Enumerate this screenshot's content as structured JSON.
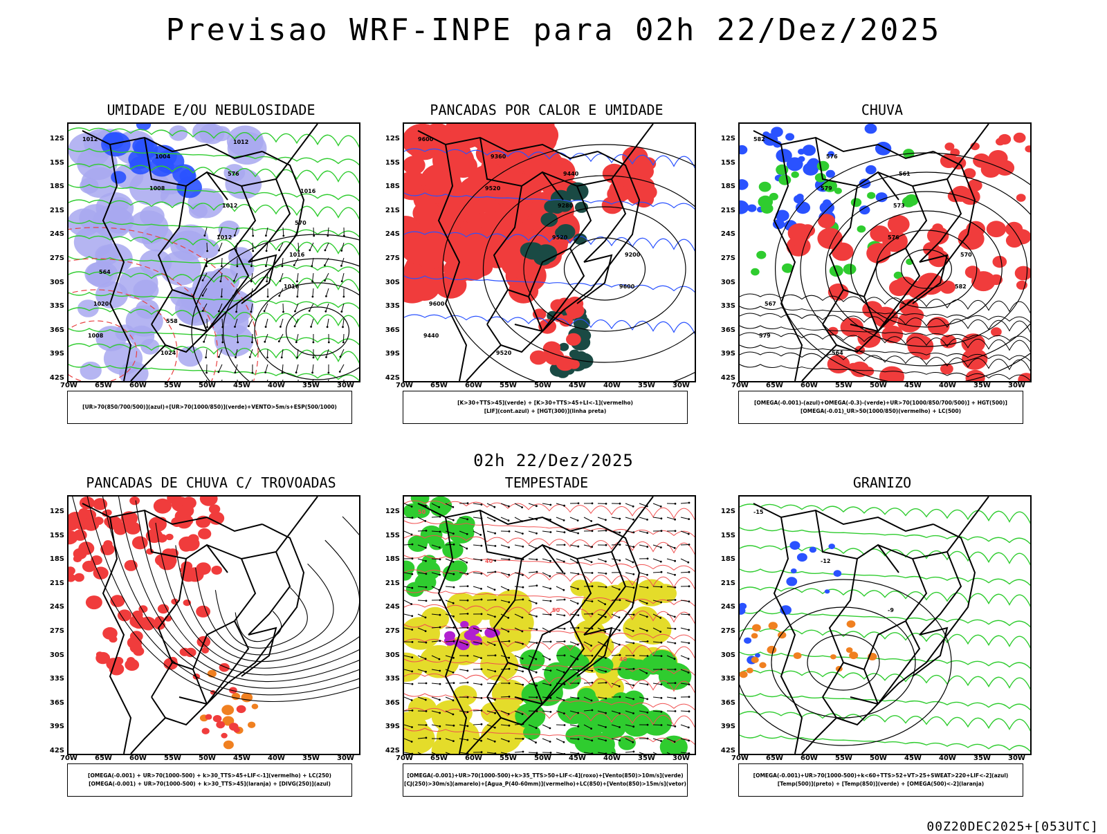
{
  "title": "Previsao WRF-INPE  para 02h 22/Dez/2025",
  "mid_time": "02h 22/Dez/2025",
  "footer": "00Z20DEC2025+[053UTC]",
  "axes": {
    "lat": [
      "12S",
      "15S",
      "18S",
      "21S",
      "24S",
      "27S",
      "30S",
      "33S",
      "36S",
      "39S",
      "42S"
    ],
    "lon": [
      "70W",
      "65W",
      "60W",
      "55W",
      "50W",
      "45W",
      "40W",
      "35W",
      "30W"
    ]
  },
  "colors": {
    "red": "#f03c3c",
    "green": "#2fcc2f",
    "blue": "#2a52ff",
    "lavender": "#a8a8f0",
    "yellow": "#e4dc2a",
    "darkgreen": "#1a4a44",
    "orange": "#f08020",
    "purple": "#b020d0"
  },
  "panels": [
    {
      "title": "UMIDADE E/OU NEBULOSIDADE",
      "legend": [
        "[UR>70(850/700/500)](azul)+[UR>70(1000/850)](verde)+VENTO>5m/s+ESP(500/1000)"
      ],
      "labels": [
        "1012",
        "1008",
        "1012",
        "1016",
        "1008",
        "1004",
        "1012",
        "1016",
        "1020",
        "1024",
        "576",
        "570",
        "564",
        "558",
        "1012",
        "1016"
      ]
    },
    {
      "title": "PANCADAS POR CALOR E UMIDADE",
      "legend": [
        "[K>30+TTS>45](verde)  +  [K>30+TTS>45+LI<-1](vermelho)",
        "[LIF](cont.azul)  +  [HGT(300)](linha preta)"
      ],
      "labels": [
        "9600",
        "9520",
        "9520",
        "9600",
        "9440",
        "9360",
        "9280",
        "9200",
        "9600",
        "9520",
        "9440"
      ]
    },
    {
      "title": "CHUVA",
      "legend": [
        "[OMEGA(-0.001)-(azul)+OMEGA(-0.3)-(verde)+UR>70(1000/850/700/500)]  +  HGT(500)]",
        "[OMEGA(-0.01)_UR>50(1000/850)(vermelho) + LC(500)"
      ],
      "labels": [
        "582",
        "579",
        "576",
        "582",
        "579",
        "576",
        "573",
        "570",
        "567",
        "564",
        "561"
      ]
    },
    {
      "title": "PANCADAS DE CHUVA C/ TROVOADAS",
      "legend": [
        "[OMEGA(-0.001)  +  UR>70(1000-500)  +  k>30_TTS>45+LIF<-1](vermelho)  +  LC(250)",
        "[OMEGA(-0.001)  +  UR>70(1000-500)  +  k>30_TTS>45](laranja)  +  [DIVG(250)](azul)"
      ],
      "labels": []
    },
    {
      "title": "TEMPESTADE",
      "legend": [
        "[OMEGA(-0.001)+UR>70(1000-500)+k>35_TTS>50+LIF<-4](roxo)+[Vento(850)>10m/s](verde)",
        "[CJ(250)>30m/s](amarelo)+[Agua_P(40-60mm)](vermelho)+LC(850)+[Vento(850)>15m/s](vetor)"
      ],
      "labels": [
        "50",
        "40",
        "50",
        "40"
      ]
    },
    {
      "title": "GRANIZO",
      "legend": [
        "[OMEGA(-0.001)+UR>70(1000-500)+k<60+TTS>52+VT>25+SWEAT>220+LIF<-2](azul)",
        "[Temp(500)](preto)  +  [Temp(850)](verde)  +  [OMEGA(500)<-2](laranja)"
      ],
      "labels": [
        "-15",
        "-12",
        "-9"
      ]
    }
  ]
}
